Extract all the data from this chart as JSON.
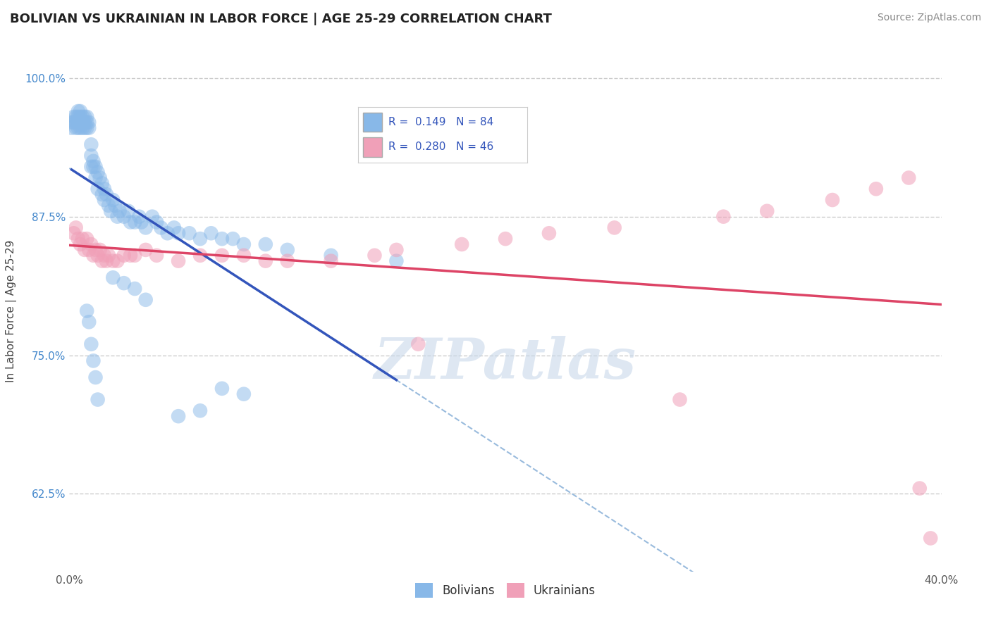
{
  "title": "BOLIVIAN VS UKRAINIAN IN LABOR FORCE | AGE 25-29 CORRELATION CHART",
  "source_text": "Source: ZipAtlas.com",
  "ylabel": "In Labor Force | Age 25-29",
  "xlim": [
    0.0,
    0.4
  ],
  "ylim": [
    0.555,
    1.025
  ],
  "xticks": [
    0.0,
    0.05,
    0.1,
    0.15,
    0.2,
    0.25,
    0.3,
    0.35,
    0.4
  ],
  "xticklabels": [
    "0.0%",
    "",
    "",
    "",
    "",
    "",
    "",
    "",
    "40.0%"
  ],
  "yticks": [
    0.625,
    0.75,
    0.875,
    1.0
  ],
  "yticklabels": [
    "62.5%",
    "75.0%",
    "87.5%",
    "100.0%"
  ],
  "grid_color": "#cccccc",
  "blue_color": "#88b8e8",
  "pink_color": "#f0a0b8",
  "blue_line_color": "#3355bb",
  "pink_line_color": "#dd4466",
  "dash_line_color": "#99bbdd",
  "R_blue": 0.149,
  "N_blue": 84,
  "R_pink": 0.28,
  "N_pink": 46,
  "legend_label_blue": "Bolivians",
  "legend_label_pink": "Ukrainians",
  "blue_x": [
    0.001,
    0.001,
    0.002,
    0.002,
    0.003,
    0.003,
    0.003,
    0.004,
    0.004,
    0.004,
    0.004,
    0.005,
    0.005,
    0.005,
    0.005,
    0.006,
    0.006,
    0.006,
    0.007,
    0.007,
    0.007,
    0.008,
    0.008,
    0.008,
    0.009,
    0.009,
    0.01,
    0.01,
    0.01,
    0.011,
    0.011,
    0.012,
    0.012,
    0.013,
    0.013,
    0.014,
    0.015,
    0.015,
    0.016,
    0.016,
    0.017,
    0.018,
    0.019,
    0.02,
    0.021,
    0.022,
    0.023,
    0.025,
    0.027,
    0.028,
    0.03,
    0.032,
    0.033,
    0.035,
    0.038,
    0.04,
    0.042,
    0.045,
    0.048,
    0.05,
    0.055,
    0.06,
    0.065,
    0.07,
    0.075,
    0.08,
    0.09,
    0.1,
    0.12,
    0.15,
    0.02,
    0.025,
    0.03,
    0.035,
    0.008,
    0.009,
    0.01,
    0.011,
    0.012,
    0.013,
    0.07,
    0.08,
    0.06,
    0.05
  ],
  "blue_y": [
    0.955,
    0.96,
    0.96,
    0.965,
    0.955,
    0.96,
    0.965,
    0.955,
    0.96,
    0.965,
    0.97,
    0.955,
    0.96,
    0.965,
    0.97,
    0.955,
    0.96,
    0.965,
    0.955,
    0.96,
    0.965,
    0.955,
    0.96,
    0.965,
    0.955,
    0.96,
    0.92,
    0.93,
    0.94,
    0.92,
    0.925,
    0.91,
    0.92,
    0.915,
    0.9,
    0.91,
    0.905,
    0.895,
    0.9,
    0.89,
    0.895,
    0.885,
    0.88,
    0.89,
    0.885,
    0.875,
    0.88,
    0.875,
    0.88,
    0.87,
    0.87,
    0.875,
    0.87,
    0.865,
    0.875,
    0.87,
    0.865,
    0.86,
    0.865,
    0.86,
    0.86,
    0.855,
    0.86,
    0.855,
    0.855,
    0.85,
    0.85,
    0.845,
    0.84,
    0.835,
    0.82,
    0.815,
    0.81,
    0.8,
    0.79,
    0.78,
    0.76,
    0.745,
    0.73,
    0.71,
    0.72,
    0.715,
    0.7,
    0.695
  ],
  "pink_x": [
    0.002,
    0.003,
    0.004,
    0.005,
    0.006,
    0.007,
    0.008,
    0.009,
    0.01,
    0.011,
    0.012,
    0.013,
    0.014,
    0.015,
    0.016,
    0.017,
    0.018,
    0.02,
    0.022,
    0.025,
    0.028,
    0.03,
    0.035,
    0.04,
    0.05,
    0.06,
    0.07,
    0.08,
    0.09,
    0.1,
    0.12,
    0.14,
    0.15,
    0.16,
    0.18,
    0.2,
    0.22,
    0.25,
    0.28,
    0.3,
    0.32,
    0.35,
    0.37,
    0.385,
    0.39,
    0.395
  ],
  "pink_y": [
    0.86,
    0.865,
    0.855,
    0.85,
    0.855,
    0.845,
    0.855,
    0.845,
    0.85,
    0.84,
    0.845,
    0.84,
    0.845,
    0.835,
    0.84,
    0.835,
    0.84,
    0.835,
    0.835,
    0.84,
    0.84,
    0.84,
    0.845,
    0.84,
    0.835,
    0.84,
    0.84,
    0.84,
    0.835,
    0.835,
    0.835,
    0.84,
    0.845,
    0.76,
    0.85,
    0.855,
    0.86,
    0.865,
    0.71,
    0.875,
    0.88,
    0.89,
    0.9,
    0.91,
    0.63,
    0.585
  ],
  "watermark_color": "#c8d8ea",
  "watermark_alpha": 0.6
}
